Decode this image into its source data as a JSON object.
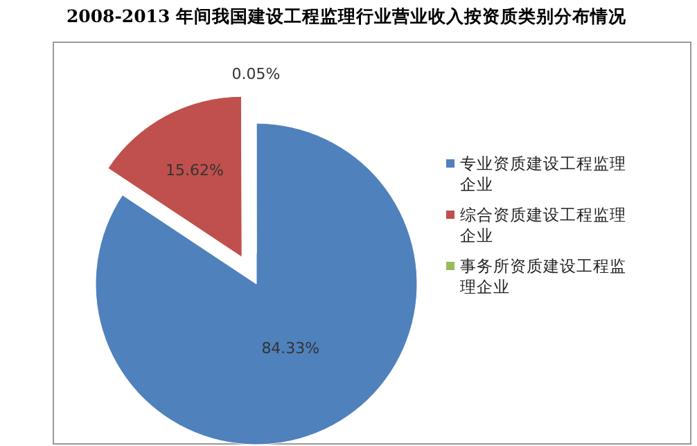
{
  "chart_data": {
    "type": "pie",
    "title": "2008-2013 年间我国建设工程监理行业营业收入按资质类别分布情况",
    "categories": [
      "专业资质建设工程监理企业",
      "综合资质建设工程监理企业",
      "事务所资质建设工程监理企业"
    ],
    "values": [
      84.33,
      15.62,
      0.05
    ],
    "colors": [
      "#4f81bd",
      "#c0504d",
      "#9bbb59"
    ],
    "value_labels": [
      "84.33%",
      "15.62%",
      "0.05%"
    ],
    "legend": "right"
  }
}
